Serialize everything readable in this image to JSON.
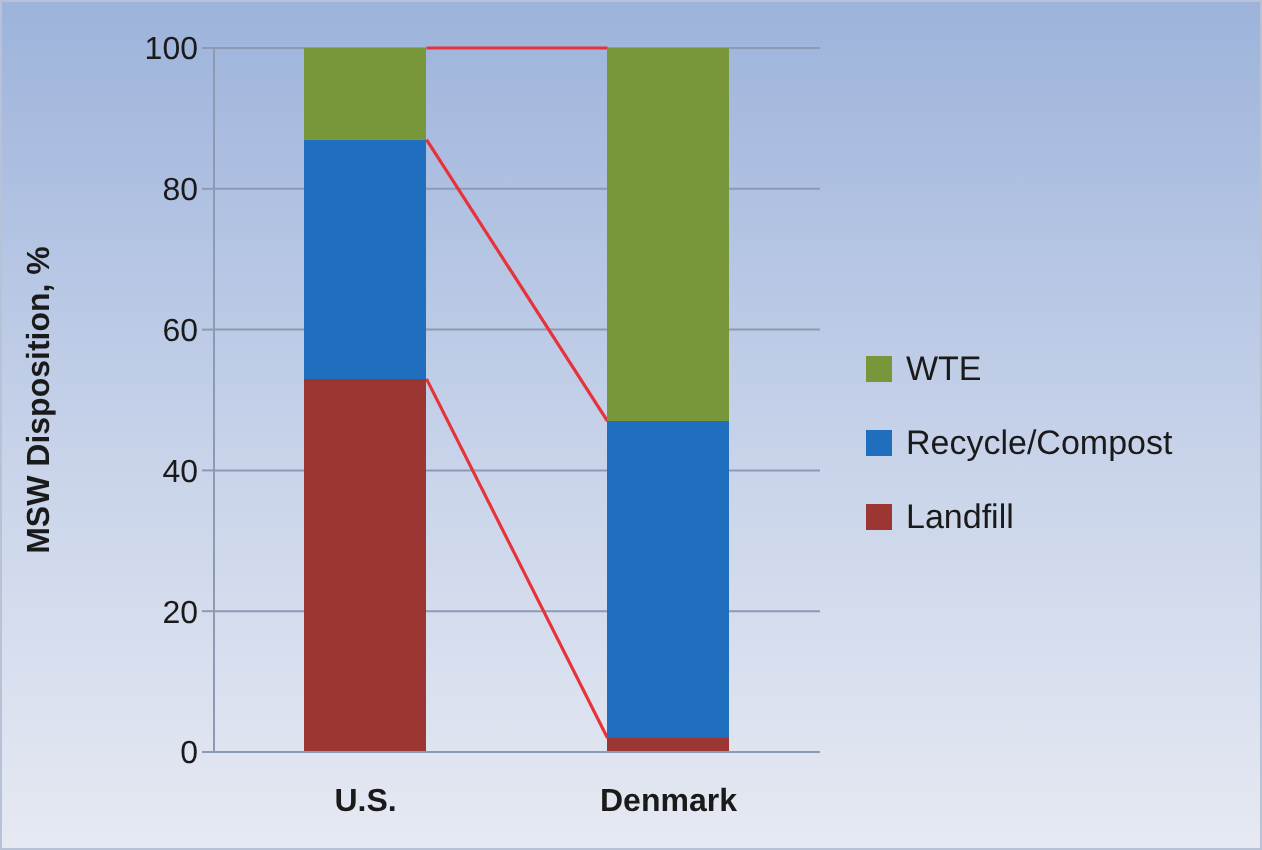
{
  "chart_data": {
    "type": "bar",
    "stacked": true,
    "ylabel": "MSW Disposition, %",
    "categories": [
      "U.S.",
      "Denmark"
    ],
    "series": [
      {
        "name": "Landfill",
        "color": "#9c3633",
        "values": [
          53,
          2
        ]
      },
      {
        "name": "Recycle/Compost",
        "color": "#1f6fbe",
        "values": [
          34,
          45
        ]
      },
      {
        "name": "WTE",
        "color": "#78973a",
        "values": [
          13,
          53
        ]
      }
    ],
    "ylim": [
      0,
      100
    ],
    "yticks": [
      0,
      20,
      40,
      60,
      80,
      100
    ],
    "grid": "y",
    "legend": "right"
  }
}
